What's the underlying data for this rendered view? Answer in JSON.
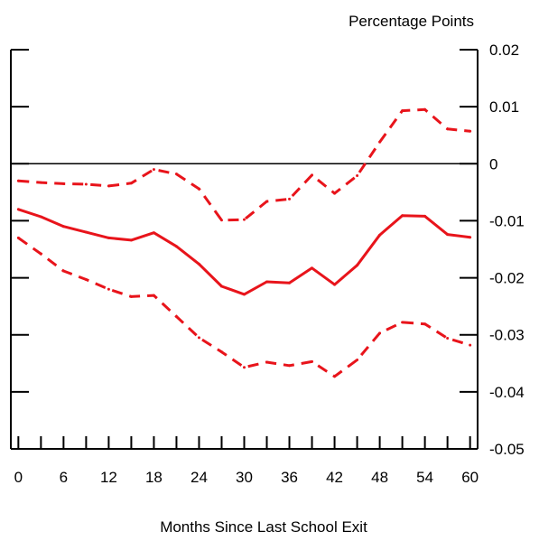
{
  "chart_data": {
    "type": "line",
    "title": "",
    "xlabel": "Months Since Last School Exit",
    "ylabel": "Percentage Points",
    "xlim": [
      -1,
      61
    ],
    "ylim": [
      -0.05,
      0.02
    ],
    "x_ticks": [
      0,
      6,
      12,
      18,
      24,
      30,
      36,
      42,
      48,
      54,
      60
    ],
    "x_minor_ticks": [
      0,
      3,
      6,
      9,
      12,
      15,
      18,
      21,
      24,
      27,
      30,
      33,
      36,
      39,
      42,
      45,
      48,
      51,
      54,
      57,
      60
    ],
    "x_tick_labels": [
      "0",
      "6",
      "12",
      "18",
      "24",
      "30",
      "36",
      "42",
      "48",
      "54",
      "60"
    ],
    "y_ticks": [
      0.02,
      0.01,
      0,
      -0.01,
      -0.02,
      -0.03,
      -0.04,
      -0.05
    ],
    "y_tick_labels": [
      "0.02",
      "0.01",
      "0",
      "-0.01",
      "-0.02",
      "-0.03",
      "-0.04",
      "-0.05"
    ],
    "zero_line": true,
    "grid": false,
    "colors": {
      "series": "#e8141b",
      "axis": "#000000",
      "zero_line": "#000000"
    },
    "x": [
      0,
      3,
      6,
      9,
      12,
      15,
      18,
      21,
      24,
      27,
      30,
      33,
      36,
      39,
      42,
      45,
      48,
      51,
      54,
      57,
      60
    ],
    "series": [
      {
        "style": "solid",
        "values": [
          -0.008,
          -0.0093,
          -0.011,
          -0.012,
          -0.013,
          -0.0134,
          -0.0121,
          -0.0145,
          -0.0176,
          -0.0215,
          -0.0229,
          -0.0207,
          -0.0209,
          -0.0183,
          -0.0212,
          -0.0178,
          -0.0125,
          -0.0091,
          -0.0092,
          -0.0124,
          -0.0129
        ]
      },
      {
        "style": "dashed",
        "values": [
          -0.003,
          -0.0033,
          -0.0035,
          -0.0036,
          -0.0039,
          -0.0034,
          -0.001,
          -0.0018,
          -0.0044,
          -0.0099,
          -0.0098,
          -0.0066,
          -0.0062,
          -0.002,
          -0.0052,
          -0.0021,
          0.0038,
          0.0093,
          0.0095,
          0.0061,
          0.0057
        ]
      },
      {
        "style": "dashed",
        "values": [
          -0.013,
          -0.0158,
          -0.0188,
          -0.0203,
          -0.022,
          -0.0233,
          -0.0231,
          -0.0268,
          -0.0305,
          -0.033,
          -0.0357,
          -0.0348,
          -0.0354,
          -0.0347,
          -0.0373,
          -0.0344,
          -0.0297,
          -0.0278,
          -0.0281,
          -0.0306,
          -0.0318
        ]
      }
    ]
  }
}
